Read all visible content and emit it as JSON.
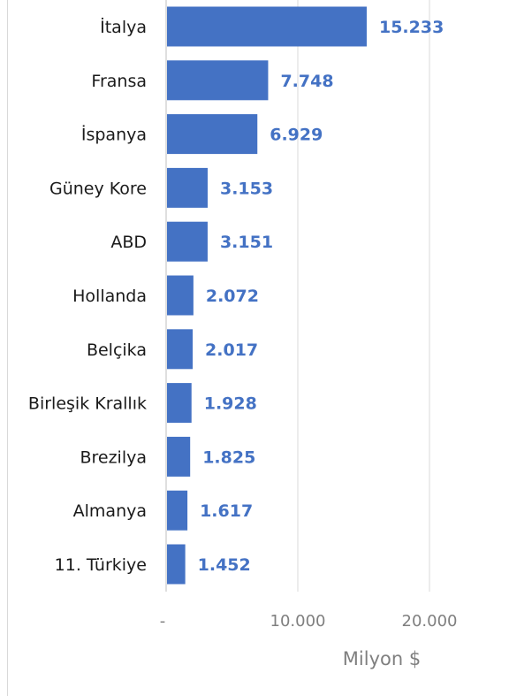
{
  "chart_data": {
    "type": "bar",
    "orientation": "horizontal",
    "categories": [
      "İtalya",
      "Fransa",
      "İspanya",
      "Güney Kore",
      "ABD",
      "Hollanda",
      "Belçika",
      "Birleşik Krallık",
      "Brezilya",
      "Almanya",
      "11. Türkiye"
    ],
    "values": [
      15233,
      7748,
      6929,
      3153,
      3151,
      2072,
      2017,
      1928,
      1825,
      1617,
      1452
    ],
    "value_labels": [
      "15.233",
      "7.748",
      "6.929",
      "3.153",
      "3.151",
      "2.072",
      "2.017",
      "1.928",
      "1.825",
      "1.617",
      "1.452"
    ],
    "x_ticks": [
      {
        "value": 0,
        "label": "-"
      },
      {
        "value": 10000,
        "label": "10.000"
      },
      {
        "value": 20000,
        "label": "20.000"
      }
    ],
    "xlim": [
      0,
      25000
    ],
    "xlabel": "Milyon $",
    "title": "",
    "grid": "vertical",
    "bar_color": "#4472c4",
    "label_color": "#4472c4",
    "gridline_color": "#d9d9d9"
  }
}
